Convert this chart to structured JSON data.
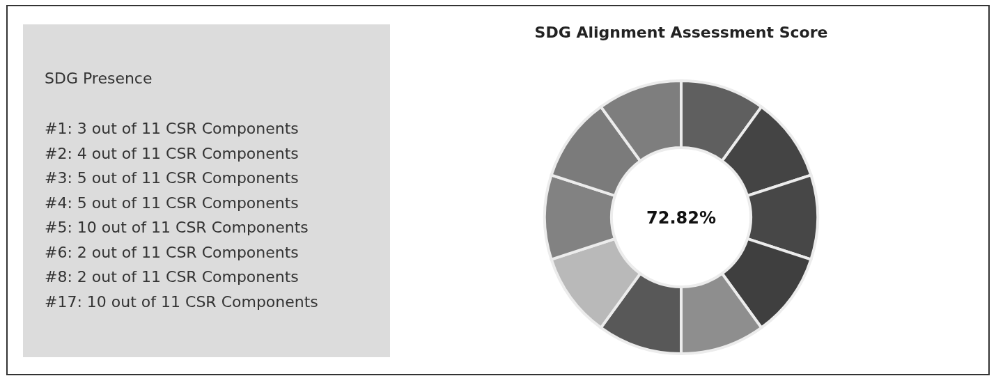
{
  "chart_data": [
    {
      "type": "other",
      "title": "SDG Presence",
      "annotations": [
        "#1: 3 out of 11 CSR Components",
        "#2: 4 out of 11 CSR Components",
        "#3: 5 out of 11 CSR Components",
        "#4: 5 out of 11 CSR Components",
        "#5: 10 out of 11 CSR Components",
        "#6: 2 out of 11 CSR Components",
        "#8: 2 out of 11 CSR Components",
        "#17: 10 out of 11 CSR Components"
      ]
    },
    {
      "type": "donut",
      "title": "SDG Alignment Assessment Score",
      "categories": [
        null,
        null,
        null,
        null,
        null,
        null,
        null,
        null,
        null,
        null
      ],
      "values": [
        10,
        10,
        10,
        10,
        10,
        10,
        10,
        10,
        10,
        10
      ],
      "colors": [
        "#5f5f5f",
        "#444444",
        "#474747",
        "#3f3f3f",
        "#8e8e8e",
        "#585858",
        "#b9b9b9",
        "#828282",
        "#7b7b7b",
        "#7e7e7e"
      ],
      "annotations": [
        "72.82%"
      ]
    }
  ]
}
